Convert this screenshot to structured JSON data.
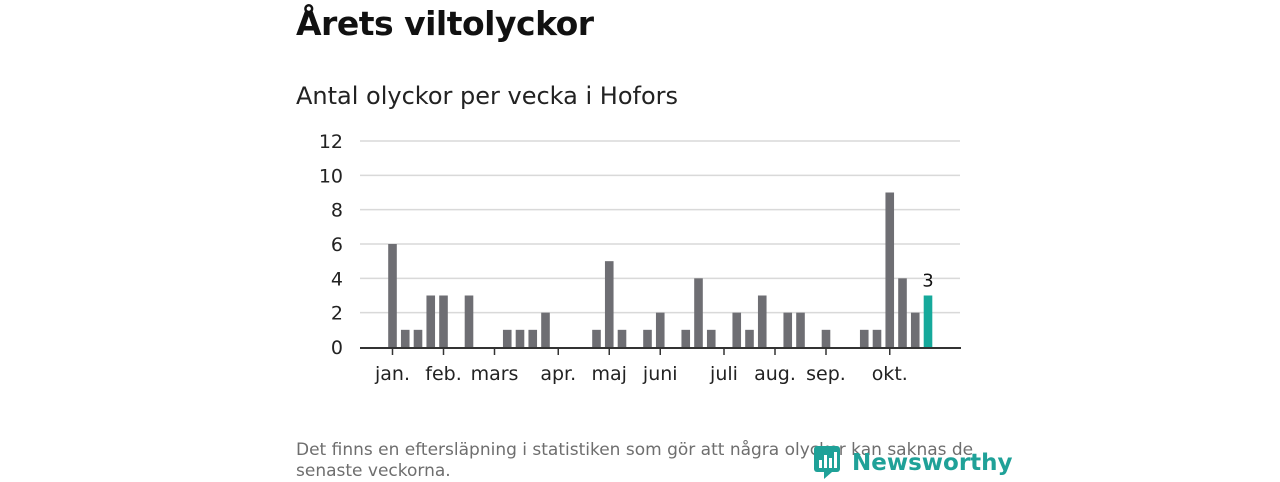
{
  "header": {
    "title": "Årets viltolyckor"
  },
  "chart_data": {
    "type": "bar",
    "title": "Antal olyckor per vecka i Hofors",
    "xlabel": "",
    "ylabel": "",
    "ylim": [
      0,
      12
    ],
    "yticks": [
      0,
      2,
      4,
      6,
      8,
      10,
      12
    ],
    "grid": true,
    "weeks": [
      1,
      2,
      3,
      4,
      5,
      6,
      7,
      8,
      9,
      10,
      11,
      12,
      13,
      14,
      15,
      16,
      17,
      18,
      19,
      20,
      21,
      22,
      23,
      24,
      25,
      26,
      27,
      28,
      29,
      30,
      31,
      32,
      33,
      34,
      35,
      36,
      37,
      38,
      39,
      40,
      41,
      42,
      43
    ],
    "values": [
      6,
      1,
      1,
      3,
      3,
      0,
      3,
      0,
      0,
      1,
      1,
      1,
      2,
      0,
      0,
      0,
      1,
      5,
      1,
      0,
      1,
      2,
      0,
      1,
      4,
      1,
      0,
      2,
      1,
      3,
      0,
      2,
      2,
      0,
      1,
      0,
      0,
      1,
      1,
      9,
      4,
      2,
      3
    ],
    "month_labels": [
      {
        "label": "jan.",
        "week": 1
      },
      {
        "label": "feb.",
        "week": 5
      },
      {
        "label": "mars",
        "week": 9
      },
      {
        "label": "apr.",
        "week": 14
      },
      {
        "label": "maj",
        "week": 18
      },
      {
        "label": "juni",
        "week": 22
      },
      {
        "label": "juli",
        "week": 27
      },
      {
        "label": "aug.",
        "week": 31
      },
      {
        "label": "sep.",
        "week": 35
      },
      {
        "label": "okt.",
        "week": 40
      }
    ],
    "highlight": {
      "week": 43,
      "value": 3,
      "label": "3"
    },
    "colors": {
      "bar": "#6e6e73",
      "highlight": "#16a99b",
      "grid": "#d9d9d9",
      "axis": "#333333"
    }
  },
  "footer": {
    "note": "Det finns en eftersläpning i statistiken som gör att några olyckor kan saknas de senaste veckorna.",
    "brand": "Newsworthy",
    "brand_icon": "newsworthy-chart-logo-icon",
    "brand_color": "#1fa198"
  }
}
